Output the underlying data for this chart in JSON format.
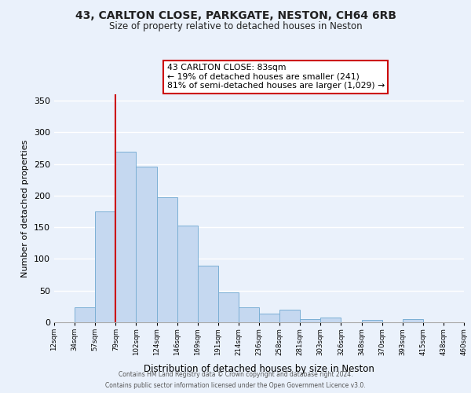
{
  "title": "43, CARLTON CLOSE, PARKGATE, NESTON, CH64 6RB",
  "subtitle": "Size of property relative to detached houses in Neston",
  "xlabel": "Distribution of detached houses by size in Neston",
  "ylabel": "Number of detached properties",
  "bins": [
    "12sqm",
    "34sqm",
    "57sqm",
    "79sqm",
    "102sqm",
    "124sqm",
    "146sqm",
    "169sqm",
    "191sqm",
    "214sqm",
    "236sqm",
    "258sqm",
    "281sqm",
    "303sqm",
    "326sqm",
    "348sqm",
    "370sqm",
    "393sqm",
    "415sqm",
    "438sqm",
    "460sqm"
  ],
  "bar_heights": [
    0,
    23,
    175,
    270,
    246,
    197,
    153,
    89,
    47,
    24,
    14,
    20,
    5,
    8,
    0,
    4,
    0,
    5,
    0,
    0,
    0
  ],
  "bar_color": "#c5d8f0",
  "bar_edge_color": "#7bafd4",
  "annotation_text_line1": "43 CARLTON CLOSE: 83sqm",
  "annotation_text_line2": "← 19% of detached houses are smaller (241)",
  "annotation_text_line3": "81% of semi-detached houses are larger (1,029) →",
  "annotation_box_color": "#ffffff",
  "annotation_box_edge_color": "#cc0000",
  "vline_color": "#cc0000",
  "vline_bin": 3,
  "ylim": [
    0,
    360
  ],
  "yticks": [
    0,
    50,
    100,
    150,
    200,
    250,
    300,
    350
  ],
  "footer_line1": "Contains HM Land Registry data © Crown copyright and database right 2024.",
  "footer_line2": "Contains public sector information licensed under the Open Government Licence v3.0.",
  "bg_color": "#eaf1fb",
  "plot_bg_color": "#eaf1fb",
  "grid_color": "#ffffff"
}
